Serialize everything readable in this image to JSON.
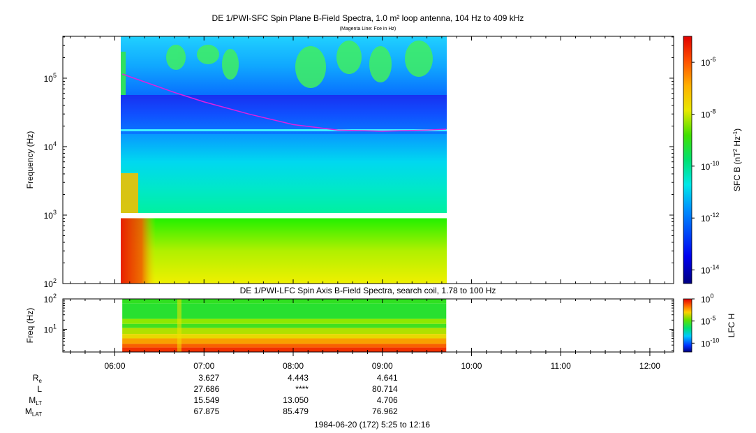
{
  "chart_data": [
    {
      "type": "heatmap",
      "title": "DE 1/PWI-SFC  Spin Plane B-Field Spectra, 1.0 m² loop antenna, 104 Hz to 409 kHz",
      "subtitle": "(Magenta Line: Fce in Hz)",
      "xlabel": "",
      "ylabel": "Frequency (Hz)",
      "yscale": "log",
      "ylim": [
        100,
        409000
      ],
      "yticks": [
        {
          "exp": 2,
          "label": "10",
          "sup": "2"
        },
        {
          "exp": 3,
          "label": "10",
          "sup": "3"
        },
        {
          "exp": 4,
          "label": "10",
          "sup": "4"
        },
        {
          "exp": 5,
          "label": "10",
          "sup": "5"
        }
      ],
      "data_span": [
        "06:05",
        "09:43"
      ],
      "gap_hz": [
        900,
        1040
      ],
      "fce_line": {
        "color": "#e020e0",
        "x": [
          "06:05",
          "06:40",
          "07:00",
          "07:30",
          "08:00",
          "08:30",
          "09:00",
          "09:30",
          "09:43"
        ],
        "y": [
          115000,
          62000,
          45000,
          30000,
          21000,
          17500,
          16800,
          17500,
          18000
        ]
      },
      "colorbar": {
        "label": "SFC B (nT² Hz⁻¹)",
        "label_main": "SFC B (nT",
        "label_sup1": "2",
        "label_mid": " Hz",
        "label_sup2": "-1",
        "label_end": ")",
        "scale": "log",
        "range": [
          3e-15,
          1e-05
        ],
        "ticks": [
          {
            "exp": -6,
            "label": "10",
            "sup": "-6"
          },
          {
            "exp": -8,
            "label": "10",
            "sup": "-8"
          },
          {
            "exp": -10,
            "label": "10",
            "sup": "-10"
          },
          {
            "exp": -12,
            "label": "10",
            "sup": "-12"
          },
          {
            "exp": -14,
            "label": "10",
            "sup": "-14"
          }
        ]
      }
    },
    {
      "type": "heatmap",
      "title": "DE 1/PWI-LFC  Spin Axis B-Field Spectra, search coil, 1.78 to 100 Hz",
      "xlabel": "",
      "ylabel": "Freq (Hz)",
      "yscale": "log",
      "ylim": [
        1.78,
        100
      ],
      "yticks": [
        {
          "exp": 1,
          "label": "10",
          "sup": "1"
        },
        {
          "exp": 2,
          "label": "10",
          "sup": "2"
        }
      ],
      "data_span": [
        "06:05",
        "09:43"
      ],
      "bands": [
        {
          "f_lo": 70,
          "f_hi": 100,
          "color": "#30e020"
        },
        {
          "f_lo": 22,
          "f_hi": 70,
          "color": "#28e030"
        },
        {
          "f_lo": 15,
          "f_hi": 22,
          "color": "#90e800"
        },
        {
          "f_lo": 11,
          "f_hi": 15,
          "color": "#40e020"
        },
        {
          "f_lo": 7,
          "f_hi": 11,
          "color": "#b0e000"
        },
        {
          "f_lo": 5,
          "f_hi": 7,
          "color": "#e8d800"
        },
        {
          "f_lo": 3.3,
          "f_hi": 5,
          "color": "#f8a000"
        },
        {
          "f_lo": 2.5,
          "f_hi": 3.3,
          "color": "#f86000"
        },
        {
          "f_lo": 1.78,
          "f_hi": 2.5,
          "color": "#f03000"
        }
      ],
      "colorbar": {
        "label": "LFC H",
        "scale": "log",
        "range": [
          1e-12,
          1
        ],
        "ticks": [
          {
            "exp": 0,
            "label": "10",
            "sup": "0"
          },
          {
            "exp": -5,
            "label": "10",
            "sup": "-5"
          },
          {
            "exp": -10,
            "label": "10",
            "sup": "-10"
          }
        ]
      }
    }
  ],
  "time_axis": {
    "range": [
      "05:25",
      "12:16"
    ],
    "tick_labels": [
      "06:00",
      "07:00",
      "08:00",
      "09:00",
      "10:00",
      "11:00",
      "12:00"
    ],
    "minor_step_minutes": 10
  },
  "ephemeris": {
    "rows": [
      {
        "name": "R",
        "sub": "e",
        "values": [
          "3.627",
          "4.443",
          "4.641"
        ]
      },
      {
        "name": "L",
        "sub": "",
        "values": [
          "27.686",
          "****",
          "80.714"
        ]
      },
      {
        "name": "M",
        "sub": "LT",
        "values": [
          "15.549",
          "13.050",
          "4.706"
        ]
      },
      {
        "name": "M",
        "sub": "LAT",
        "values": [
          "67.875",
          "85.479",
          "76.962"
        ]
      }
    ],
    "times": [
      "07:00",
      "08:00",
      "09:00"
    ]
  },
  "footer": "1984-06-20 (172) 5:25 to 12:16",
  "colors": {
    "axis": "#000000",
    "fce": "#e020e0",
    "gap": "#ffffff"
  }
}
